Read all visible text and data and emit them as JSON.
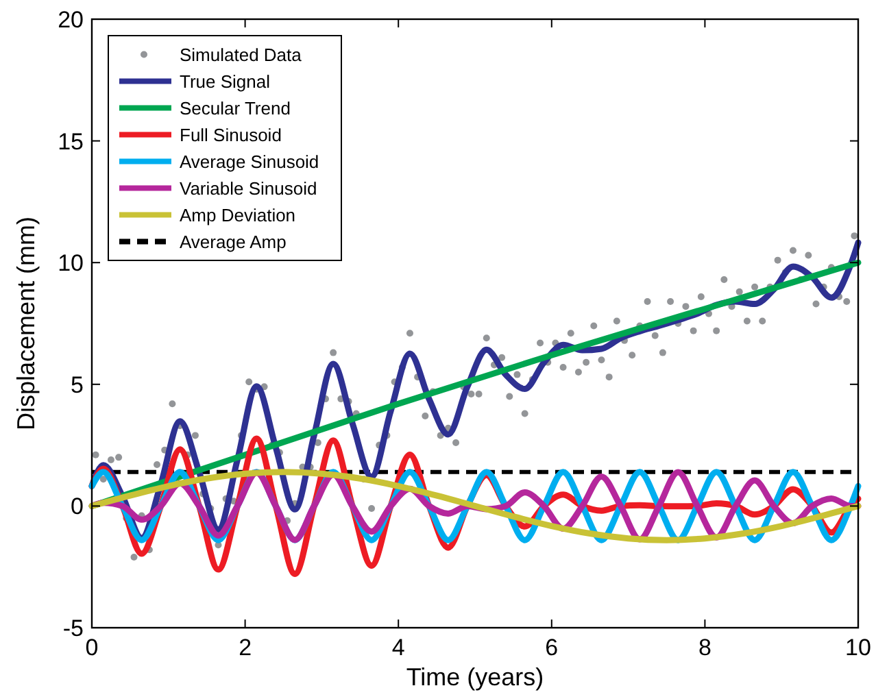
{
  "chart_data": {
    "type": "line",
    "xlabel": "Time (years)",
    "ylabel": "Displacement (mm)",
    "xlim": [
      0,
      10
    ],
    "xticks": [
      0,
      2,
      4,
      6,
      8,
      10
    ],
    "ylim": [
      -5,
      20
    ],
    "yticks": [
      -5,
      0,
      5,
      10,
      15,
      20
    ],
    "grid": false,
    "legend": "top left",
    "series": [
      {
        "name": "Simulated Data",
        "type": "scatter",
        "marker": "circle",
        "color": "#939598",
        "x": [
          0.05,
          0.15,
          0.25,
          0.35,
          0.45,
          0.55,
          0.65,
          0.75,
          0.85,
          0.95,
          1.05,
          1.15,
          1.25,
          1.35,
          1.45,
          1.55,
          1.65,
          1.75,
          1.85,
          1.95,
          2.05,
          2.15,
          2.25,
          2.35,
          2.45,
          2.55,
          2.65,
          2.75,
          2.85,
          2.95,
          3.05,
          3.15,
          3.25,
          3.35,
          3.45,
          3.55,
          3.65,
          3.75,
          3.85,
          3.95,
          4.05,
          4.15,
          4.25,
          4.35,
          4.45,
          4.55,
          4.65,
          4.75,
          4.85,
          4.95,
          5.05,
          5.15,
          5.25,
          5.35,
          5.45,
          5.55,
          5.65,
          5.75,
          5.85,
          5.95,
          6.05,
          6.15,
          6.25,
          6.35,
          6.45,
          6.55,
          6.65,
          6.75,
          6.85,
          6.95,
          7.05,
          7.15,
          7.25,
          7.35,
          7.45,
          7.55,
          7.65,
          7.75,
          7.85,
          7.95,
          8.05,
          8.15,
          8.25,
          8.35,
          8.45,
          8.55,
          8.65,
          8.75,
          8.85,
          8.95,
          9.05,
          9.15,
          9.25,
          9.35,
          9.45,
          9.55,
          9.65,
          9.75,
          9.85,
          9.95
        ],
        "values": [
          2.1,
          1.1,
          1.9,
          2.0,
          -0.5,
          -2.1,
          -0.4,
          -1.8,
          1.7,
          2.3,
          4.2,
          3.3,
          2.1,
          2.9,
          0.5,
          -0.1,
          -1.6,
          0.3,
          0.2,
          2.9,
          5.1,
          4.8,
          4.9,
          2.5,
          2.2,
          -0.6,
          0.1,
          1.6,
          1.6,
          2.6,
          4.4,
          6.3,
          4.4,
          4.3,
          3.8,
          1.1,
          -0.1,
          2.5,
          2.9,
          5.1,
          5.7,
          7.1,
          5.3,
          3.7,
          4.7,
          2.9,
          3.2,
          2.6,
          4.9,
          4.6,
          4.6,
          6.9,
          5.8,
          6.1,
          4.5,
          5.4,
          3.8,
          5.2,
          6.7,
          5.9,
          6.7,
          5.7,
          7.1,
          5.5,
          5.9,
          7.4,
          6.0,
          5.3,
          7.6,
          6.8,
          6.2,
          7.4,
          8.4,
          7.0,
          6.3,
          8.4,
          7.5,
          8.2,
          7.2,
          8.6,
          7.9,
          7.2,
          9.3,
          8.2,
          8.8,
          7.6,
          9.0,
          7.6,
          9.0,
          10.1,
          9.6,
          10.5,
          9.3,
          10.3,
          8.3,
          9.0,
          9.8,
          8.6,
          8.4,
          11.1
        ]
      },
      {
        "name": "True Signal",
        "type": "line",
        "color": "#2e3192",
        "x": [
          0,
          0.15,
          0.4,
          0.65,
          0.9,
          1.15,
          1.4,
          1.65,
          1.9,
          2.15,
          2.4,
          2.65,
          2.9,
          3.15,
          3.4,
          3.65,
          3.9,
          4.15,
          4.4,
          4.65,
          4.9,
          5.15,
          5.4,
          5.65,
          5.9,
          6.15,
          6.4,
          6.65,
          6.9,
          7.15,
          7.4,
          7.65,
          7.9,
          8.15,
          8.4,
          8.65,
          8.9,
          9.15,
          9.4,
          9.65,
          9.9,
          10
        ],
        "values": [
          0.82,
          1.68,
          0.4,
          -1.31,
          0.9,
          3.48,
          1.4,
          -0.96,
          1.9,
          4.92,
          2.4,
          -0.14,
          2.9,
          5.84,
          3.4,
          1.2,
          3.9,
          6.26,
          4.4,
          2.94,
          4.9,
          6.42,
          5.4,
          4.81,
          5.9,
          6.62,
          6.4,
          6.46,
          6.9,
          7.18,
          7.4,
          7.64,
          7.9,
          8.26,
          8.4,
          8.3,
          8.9,
          9.84,
          9.4,
          8.56,
          9.9,
          10.82
        ]
      },
      {
        "name": "Secular Trend",
        "type": "line",
        "color": "#00a651",
        "x": [
          0,
          2,
          4,
          6,
          8,
          10
        ],
        "values": [
          0,
          2.1,
          4.2,
          6.2,
          8.1,
          10
        ]
      },
      {
        "name": "Full Sinusoid",
        "type": "line",
        "color": "#ed1c24",
        "x": [
          0,
          0.15,
          0.4,
          0.65,
          0.9,
          1.15,
          1.4,
          1.65,
          1.9,
          2.15,
          2.4,
          2.65,
          2.9,
          3.15,
          3.4,
          3.65,
          3.9,
          4.15,
          4.4,
          4.65,
          4.9,
          5.15,
          5.4,
          5.65,
          5.9,
          6.15,
          6.4,
          6.65,
          6.9,
          7.15,
          7.4,
          7.65,
          7.9,
          8.15,
          8.4,
          8.65,
          8.9,
          9.15,
          9.4,
          9.65,
          9.9,
          10
        ],
        "values": [
          0.82,
          1.53,
          0,
          -1.96,
          0,
          2.33,
          0,
          -2.61,
          0,
          2.77,
          0,
          -2.79,
          0,
          2.69,
          0,
          -2.45,
          0,
          2.11,
          0,
          -1.71,
          0,
          1.27,
          0,
          -0.84,
          0,
          0.47,
          0,
          -0.19,
          0,
          0.03,
          0,
          -0.01,
          0,
          0.11,
          0,
          -0.35,
          0,
          0.69,
          0,
          -1.09,
          0,
          0.3
        ]
      },
      {
        "name": "Average Sinusoid",
        "type": "line",
        "color": "#00aeef",
        "x": [
          0,
          0.15,
          0.4,
          0.65,
          0.9,
          1.15,
          1.4,
          1.65,
          1.9,
          2.15,
          2.4,
          2.65,
          2.9,
          3.15,
          3.4,
          3.65,
          3.9,
          4.15,
          4.4,
          4.65,
          4.9,
          5.15,
          5.4,
          5.65,
          5.9,
          6.15,
          6.4,
          6.65,
          6.9,
          7.15,
          7.4,
          7.65,
          7.9,
          8.15,
          8.4,
          8.65,
          8.9,
          9.15,
          9.4,
          9.65,
          9.9,
          10
        ],
        "values": [
          0.82,
          1.4,
          0,
          -1.4,
          0,
          1.4,
          0,
          -1.4,
          0,
          1.4,
          0,
          -1.4,
          0,
          1.4,
          0,
          -1.4,
          0,
          1.4,
          0,
          -1.4,
          0,
          1.4,
          0,
          -1.4,
          0,
          1.4,
          0,
          -1.4,
          0,
          1.4,
          0,
          -1.4,
          0,
          1.4,
          0,
          -1.4,
          0,
          1.4,
          0,
          -1.4,
          0,
          0.82
        ]
      },
      {
        "name": "Variable Sinusoid",
        "type": "line",
        "color": "#b5279c",
        "x": [
          0,
          0.15,
          0.4,
          0.65,
          0.9,
          1.15,
          1.4,
          1.65,
          1.9,
          2.15,
          2.4,
          2.65,
          2.9,
          3.15,
          3.4,
          3.65,
          3.9,
          4.15,
          4.4,
          4.65,
          4.9,
          5.15,
          5.4,
          5.65,
          5.9,
          6.15,
          6.4,
          6.65,
          6.9,
          7.15,
          7.4,
          7.65,
          7.9,
          8.15,
          8.4,
          8.65,
          8.9,
          9.15,
          9.4,
          9.65,
          9.9,
          10
        ],
        "values": [
          0,
          0.13,
          0,
          -0.56,
          0,
          0.93,
          0,
          -1.21,
          0,
          1.37,
          0,
          -1.39,
          0,
          1.29,
          0,
          -1.05,
          0,
          0.71,
          0,
          -0.31,
          0,
          -0.13,
          0,
          0.56,
          0,
          -0.93,
          0,
          1.21,
          0,
          -1.37,
          0,
          1.39,
          0,
          -1.29,
          0,
          1.05,
          0,
          -0.71,
          0,
          0.31,
          0,
          0
        ]
      },
      {
        "name": "Amp Deviation",
        "type": "line",
        "color": "#c9c236",
        "x": [
          0,
          0.5,
          1,
          1.5,
          2,
          2.5,
          3,
          3.5,
          4,
          4.5,
          5,
          5.5,
          6,
          6.5,
          7,
          7.5,
          8,
          8.5,
          9,
          9.5,
          10
        ],
        "values": [
          0,
          0.43,
          0.82,
          1.13,
          1.33,
          1.4,
          1.33,
          1.13,
          0.82,
          0.43,
          0,
          -0.43,
          -0.82,
          -1.13,
          -1.33,
          -1.4,
          -1.33,
          -1.13,
          -0.82,
          -0.43,
          0
        ]
      }
    ],
    "ref_lines": [
      {
        "axis": "y",
        "value": 1.4,
        "label": "Average Amp",
        "color": "#000000",
        "line_style": "dashed"
      }
    ]
  }
}
